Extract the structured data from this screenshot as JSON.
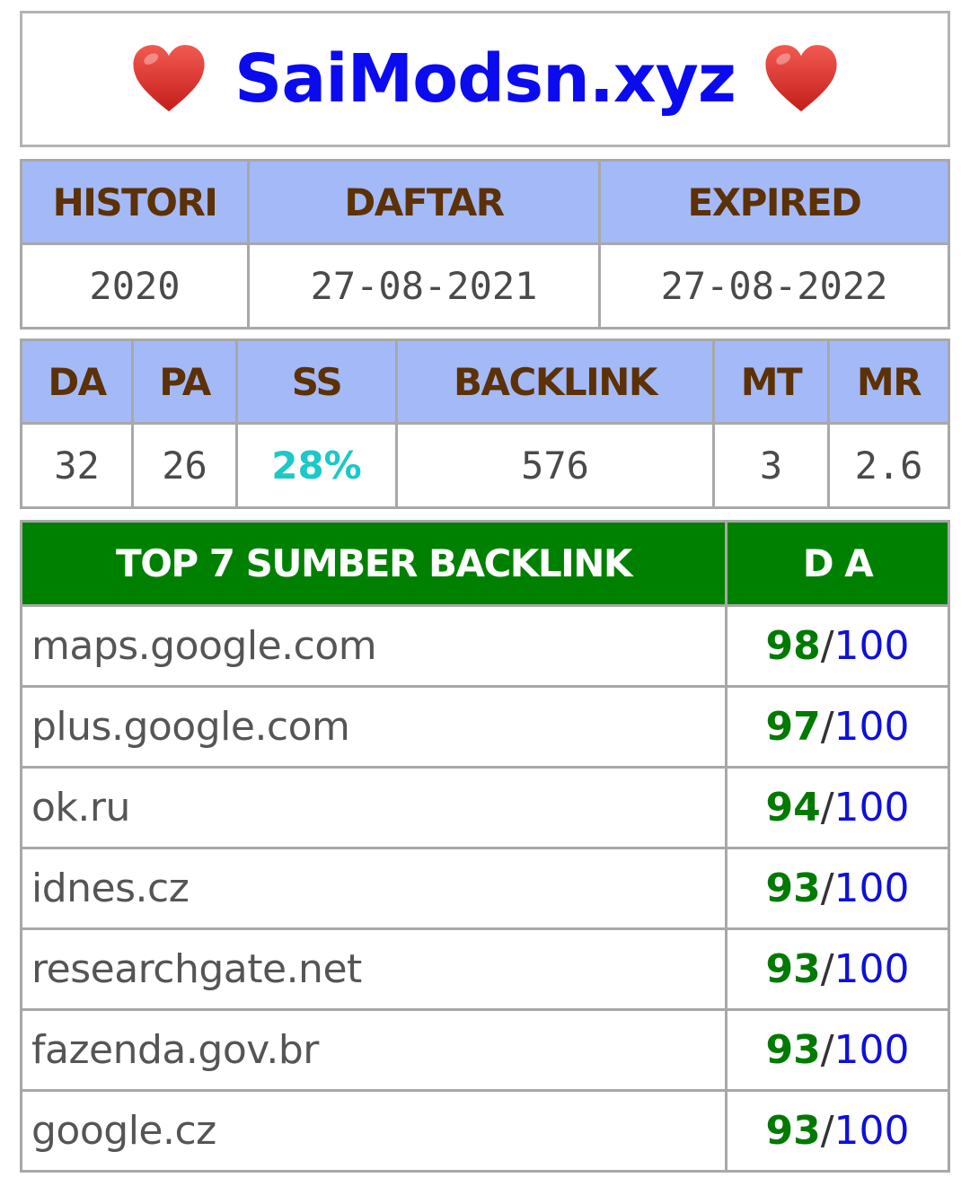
{
  "header": {
    "title": "SaiModsn.xyz",
    "left_icon": "heart-icon",
    "right_icon": "heart-icon",
    "title_color": "#0b0bf0",
    "heart_color": "#e8302a"
  },
  "domain_info": {
    "headers": [
      "HISTORI",
      "DAFTAR",
      "EXPIRED"
    ],
    "values": [
      "2020",
      "27-08-2021",
      "27-08-2022"
    ]
  },
  "metrics": {
    "headers": [
      "DA",
      "PA",
      "SS",
      "BACKLINK",
      "MT",
      "MR"
    ],
    "values": [
      "32",
      "26",
      "28%",
      "576",
      "3",
      "2.6"
    ]
  },
  "backlinks": {
    "header_source": "TOP 7 SUMBER BACKLINK",
    "header_da": "D A",
    "separator": "/",
    "rows": [
      {
        "site": "maps.google.com",
        "da": "98",
        "max": "100"
      },
      {
        "site": "plus.google.com",
        "da": "97",
        "max": "100"
      },
      {
        "site": "ok.ru",
        "da": "94",
        "max": "100"
      },
      {
        "site": "idnes.cz",
        "da": "93",
        "max": "100"
      },
      {
        "site": "researchgate.net",
        "da": "93",
        "max": "100"
      },
      {
        "site": "fazenda.gov.br",
        "da": "93",
        "max": "100"
      },
      {
        "site": "google.cz",
        "da": "93",
        "max": "100"
      }
    ]
  }
}
